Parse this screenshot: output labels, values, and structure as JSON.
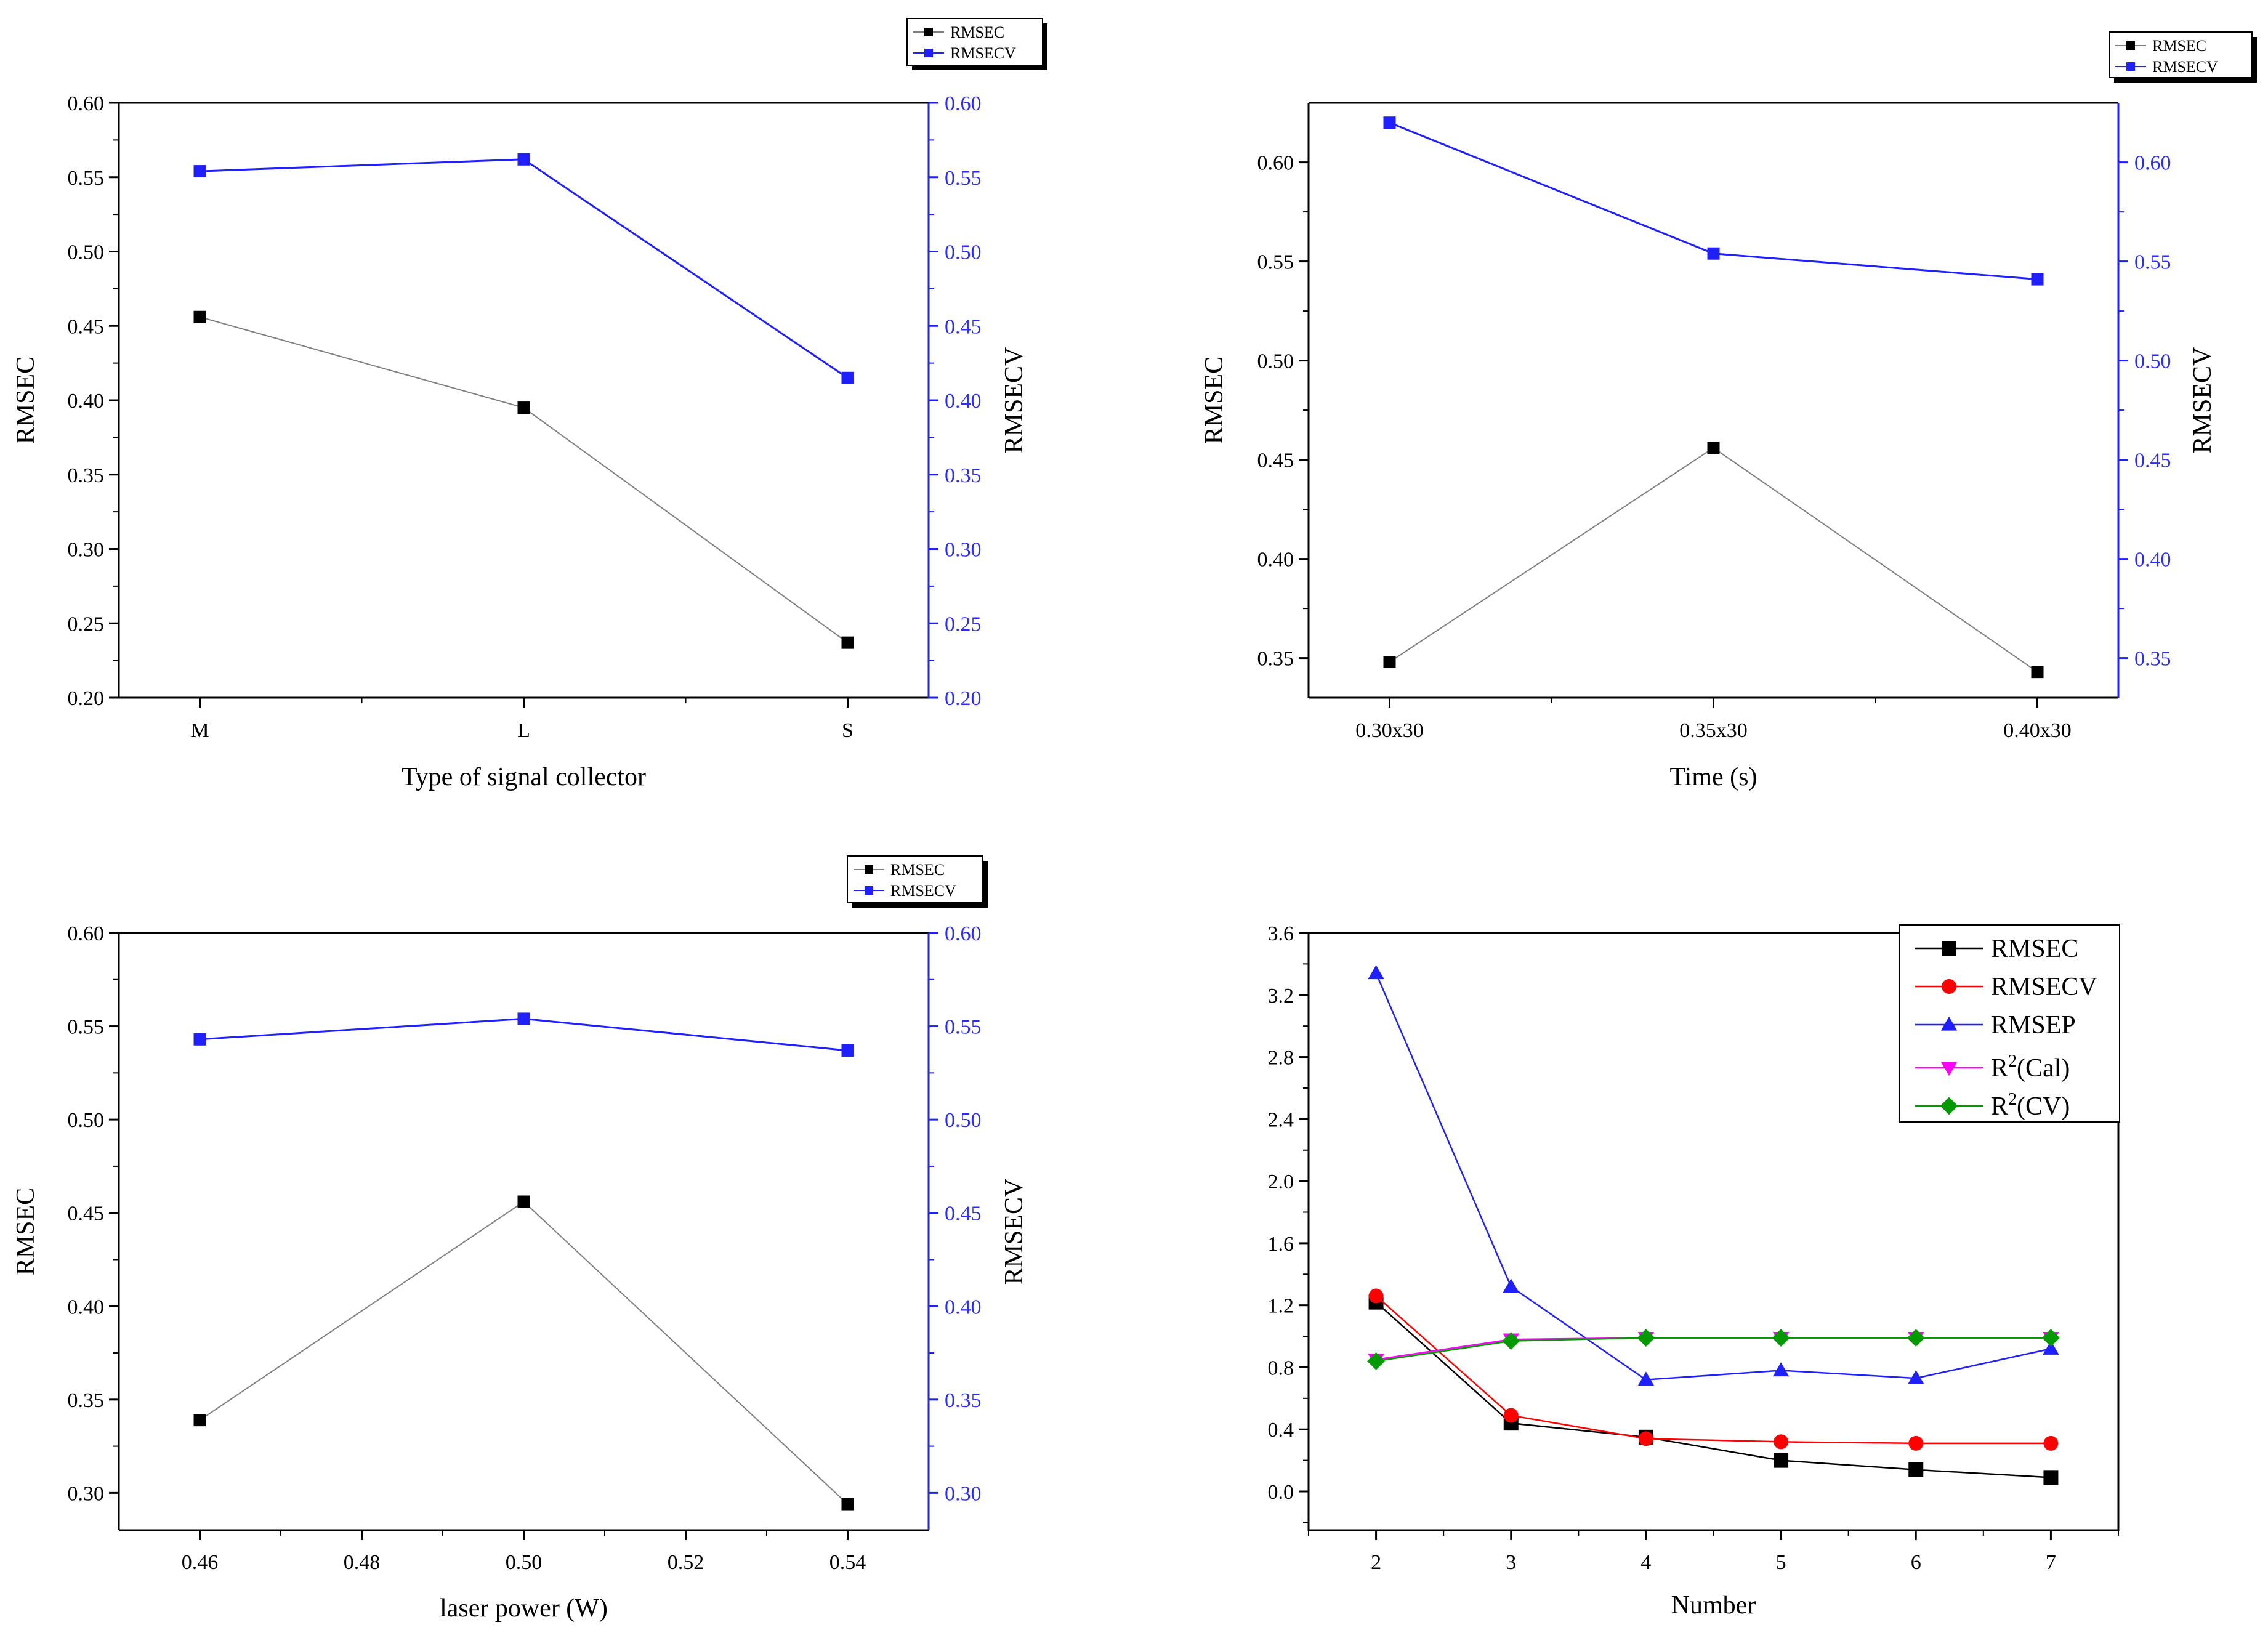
{
  "colors": {
    "rmsec": "#000000",
    "rmsecv_dual": "#1f1fff",
    "rmsecv_red": "#ff0000",
    "rmsep": "#1f1fff",
    "r2cal": "#ff00ff",
    "r2cv": "#009900",
    "gray_line": "#808080"
  },
  "chart_data": [
    {
      "id": "collector",
      "type": "line",
      "xlabel": "Type of signal collector",
      "ylabel": "RMSEC",
      "y2label": "RMSECV",
      "categories": [
        "M",
        "L",
        "S"
      ],
      "ylim": [
        0.2,
        0.6
      ],
      "y2lim": [
        0.2,
        0.6
      ],
      "yticks": [
        "0.20",
        "0.25",
        "0.30",
        "0.35",
        "0.40",
        "0.45",
        "0.50",
        "0.55",
        "0.60"
      ],
      "legend": [
        "RMSEC",
        "RMSECV"
      ],
      "legend_position": "top-right outside",
      "series": [
        {
          "name": "RMSEC",
          "axis": "left",
          "values": [
            0.456,
            0.395,
            0.237
          ]
        },
        {
          "name": "RMSECV",
          "axis": "right",
          "values": [
            0.554,
            0.562,
            0.415
          ]
        }
      ]
    },
    {
      "id": "time",
      "type": "line",
      "xlabel": "Time (s)",
      "ylabel": "RMSEC",
      "y2label": "RMSECV",
      "categories": [
        "0.30x30",
        "0.35x30",
        "0.40x30"
      ],
      "ylim": [
        0.33,
        0.63
      ],
      "y2lim": [
        0.33,
        0.63
      ],
      "yticks": [
        "0.35",
        "0.40",
        "0.45",
        "0.50",
        "0.55",
        "0.60"
      ],
      "legend": [
        "RMSEC",
        "RMSECV"
      ],
      "legend_position": "top-right outside",
      "series": [
        {
          "name": "RMSEC",
          "axis": "left",
          "values": [
            0.348,
            0.456,
            0.343
          ]
        },
        {
          "name": "RMSECV",
          "axis": "right",
          "values": [
            0.62,
            0.554,
            0.541
          ]
        }
      ]
    },
    {
      "id": "power",
      "type": "line",
      "xlabel": "laser power (W)",
      "ylabel": "RMSEC",
      "y2label": "RMSECV",
      "x": [
        0.46,
        0.5,
        0.54
      ],
      "xlim": [
        0.45,
        0.55
      ],
      "xticks": [
        "0.46",
        "0.48",
        "0.50",
        "0.52",
        "0.54"
      ],
      "ylim": [
        0.28,
        0.6
      ],
      "y2lim": [
        0.28,
        0.6
      ],
      "yticks": [
        "0.30",
        "0.35",
        "0.40",
        "0.45",
        "0.50",
        "0.55",
        "0.60"
      ],
      "legend": [
        "RMSEC",
        "RMSECV"
      ],
      "legend_position": "top-right outside",
      "series": [
        {
          "name": "RMSEC",
          "axis": "left",
          "values": [
            0.339,
            0.456,
            0.294
          ]
        },
        {
          "name": "RMSECV",
          "axis": "right",
          "values": [
            0.543,
            0.554,
            0.537
          ]
        }
      ]
    },
    {
      "id": "number",
      "type": "line",
      "xlabel": "Number",
      "ylabel": "",
      "x": [
        2,
        3,
        4,
        5,
        6,
        7
      ],
      "xlim": [
        1.5,
        7.5
      ],
      "xticks": [
        "2",
        "3",
        "4",
        "5",
        "6",
        "7"
      ],
      "ylim": [
        -0.25,
        3.6
      ],
      "yticks": [
        "0.0",
        "0.4",
        "0.8",
        "1.2",
        "1.6",
        "2.0",
        "2.4",
        "2.8",
        "3.2",
        "3.6"
      ],
      "legend_position": "top-right inside",
      "series": [
        {
          "name": "RMSEC",
          "sup": "",
          "suffix": "",
          "marker": "square",
          "values": [
            1.22,
            0.44,
            0.35,
            0.2,
            0.14,
            0.09
          ]
        },
        {
          "name": "RMSECV",
          "sup": "",
          "suffix": "",
          "marker": "circle",
          "values": [
            1.26,
            0.49,
            0.34,
            0.32,
            0.31,
            0.31
          ]
        },
        {
          "name": "RMSEP",
          "sup": "",
          "suffix": "",
          "marker": "triangle-up",
          "values": [
            3.34,
            1.32,
            0.72,
            0.78,
            0.73,
            0.92
          ]
        },
        {
          "name": "R",
          "sup": "2",
          "suffix": "(Cal)",
          "marker": "triangle-down",
          "values": [
            0.85,
            0.98,
            0.99,
            0.99,
            0.99,
            0.99
          ]
        },
        {
          "name": "R",
          "sup": "2",
          "suffix": "(CV)",
          "marker": "diamond",
          "values": [
            0.84,
            0.97,
            0.99,
            0.99,
            0.99,
            0.99
          ]
        }
      ]
    }
  ]
}
